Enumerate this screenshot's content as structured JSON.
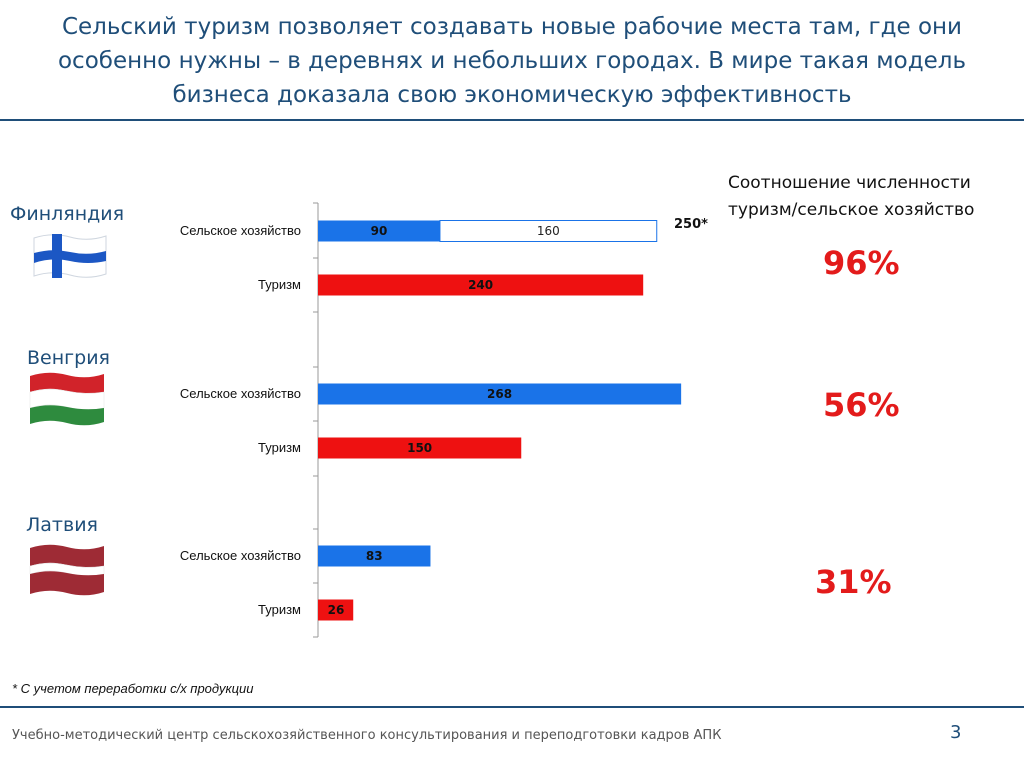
{
  "title": "Сельский туризм позволяет создавать новые рабочие места там, где они особенно нужны – в деревнях и небольших городах.  В мире такая модель бизнеса доказала свою экономическую эффективность",
  "countries": [
    {
      "name": "Финляндия",
      "ratio": "96%",
      "flag": "finland-flag-icon"
    },
    {
      "name": "Венгрия",
      "ratio": "56%",
      "flag": "hungary-flag-icon"
    },
    {
      "name": "Латвия",
      "ratio": "31%",
      "flag": "latvia-flag-icon"
    }
  ],
  "ratio_header": "Соотношение численности туризм/сельское хозяйство",
  "footnote": "* С учетом переработки с/х продукции",
  "footer": "Учебно-методический центр сельскохозяйственного консультирования и переподготовки кадров АПК",
  "slide_number": "3",
  "colors": {
    "title": "#1f4e79",
    "agriculture": "#1a73e8",
    "tourism": "#ee1111",
    "percent": "#e31b1b"
  },
  "chart_data": {
    "type": "bar",
    "orientation": "horizontal",
    "xlim": [
      0,
      268
    ],
    "categories": [
      "Сельское хозяйство",
      "Туризм",
      "Сельское хозяйство",
      "Туризм",
      "Сельское хозяйство",
      "Туризм"
    ],
    "groups": [
      "Финляндия",
      "Финляндия",
      "Венгрия",
      "Венгрия",
      "Латвия",
      "Латвия"
    ],
    "series": [
      {
        "key": "agriculture",
        "values": [
          90,
          null,
          268,
          null,
          83,
          null
        ]
      },
      {
        "key": "agriculture_processing",
        "values": [
          160,
          null,
          null,
          null,
          null,
          null
        ]
      },
      {
        "key": "tourism",
        "values": [
          null,
          240,
          null,
          150,
          null,
          26
        ]
      }
    ],
    "annotations": [
      {
        "category_index": 0,
        "text": "250*"
      }
    ]
  }
}
